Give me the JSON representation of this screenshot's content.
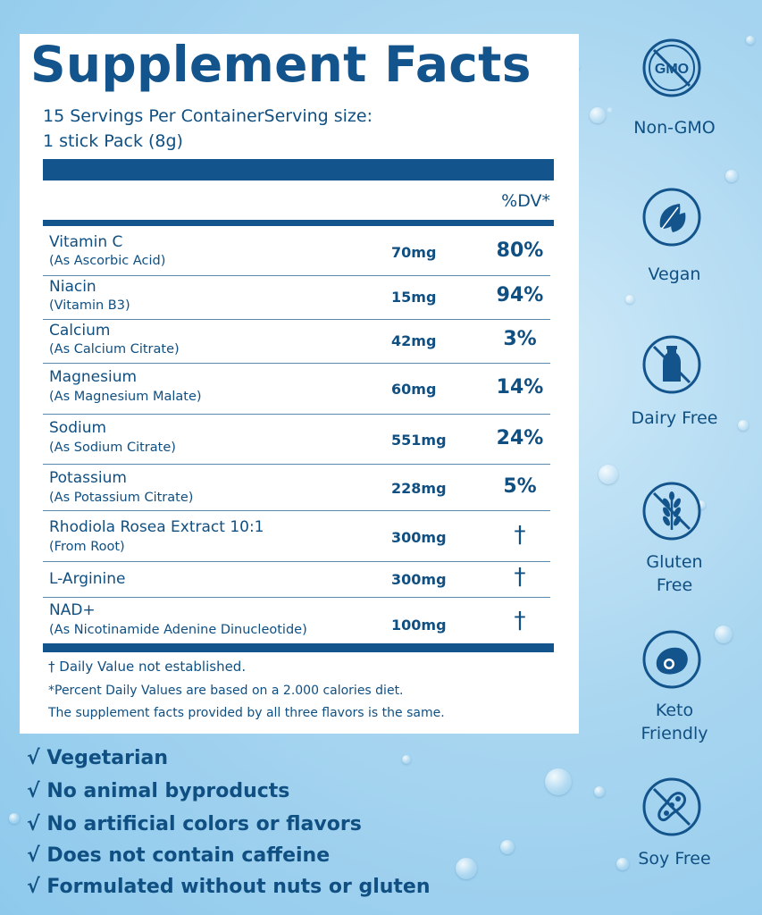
{
  "title": "Supplement Facts",
  "servings_line1": "15 Servings Per ContainerServing size:",
  "servings_line2": "1 stick Pack (8g)",
  "dv_header": "%DV*",
  "nutrients": [
    {
      "name": "Vitamin C",
      "sub": "(As Ascorbic Acid)",
      "amount": "70mg",
      "dv": "80%"
    },
    {
      "name": "Niacin",
      "sub": "(Vitamin B3)",
      "amount": "15mg",
      "dv": "94%"
    },
    {
      "name": "Calcium",
      "sub": "(As Calcium Citrate)",
      "amount": "42mg",
      "dv": "3%"
    },
    {
      "name": "Magnesium",
      "sub": "(As Magnesium Malate)",
      "amount": "60mg",
      "dv": "14%"
    },
    {
      "name": "Sodium",
      "sub": "(As Sodium Citrate)",
      "amount": "551mg",
      "dv": "24%"
    },
    {
      "name": "Potassium",
      "sub": "(As Potassium Citrate)",
      "amount": "228mg",
      "dv": "5%"
    },
    {
      "name": "Rhodiola Rosea Extract 10:1",
      "sub": "(From Root)",
      "amount": "300mg",
      "dv": "†"
    },
    {
      "name": "L-Arginine",
      "sub": "",
      "amount": "300mg",
      "dv": "†"
    },
    {
      "name": "NAD+",
      "sub": "(As Nicotinamide Adenine Dinucleotide)",
      "amount": "100mg",
      "dv": "†"
    }
  ],
  "footnotes": [
    "† Daily Value not established.",
    "*Percent Daily Values are based on a 2.000 calories diet.",
    "The supplement facts provided by all three flavors is the same."
  ],
  "claims": [
    "√ Vegetarian",
    "√ No animal byproducts",
    "√ No artificial colors or flavors",
    "√ Does not contain caffeine",
    "√ Formulated without nuts or gluten"
  ],
  "badges": [
    {
      "icon": "non-gmo-icon",
      "label": "Non-GMO",
      "icon_text": "GMO"
    },
    {
      "icon": "vegan-leaf-icon",
      "label": "Vegan"
    },
    {
      "icon": "dairy-free-icon",
      "label": "Dairy Free"
    },
    {
      "icon": "gluten-free-icon",
      "label": "Gluten\nFree"
    },
    {
      "icon": "keto-avocado-icon",
      "label": "Keto\nFriendly"
    },
    {
      "icon": "soy-free-icon",
      "label": "Soy Free"
    }
  ],
  "colors": {
    "brand_blue": "#12548b",
    "text_blue": "#0f4f82",
    "background": "#a9d6f0"
  }
}
